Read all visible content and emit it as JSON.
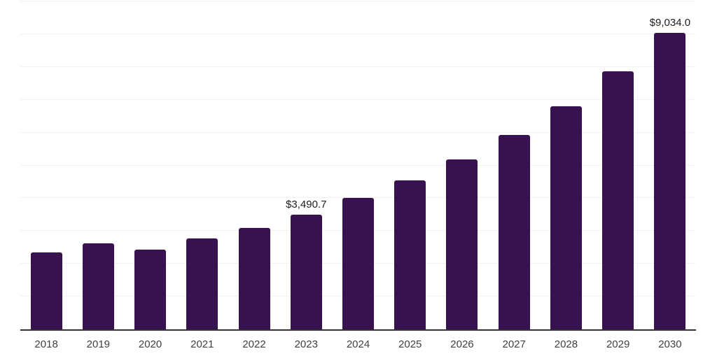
{
  "chart_data": {
    "type": "bar",
    "title": "",
    "xlabel": "",
    "ylabel": "",
    "categories": [
      "2018",
      "2019",
      "2020",
      "2021",
      "2022",
      "2023",
      "2024",
      "2025",
      "2026",
      "2027",
      "2028",
      "2029",
      "2030"
    ],
    "values": [
      2340,
      2630,
      2435,
      2770,
      3090,
      3490.7,
      4000,
      4535,
      5175,
      5935,
      6810,
      7860,
      9034
    ],
    "point_labels": [
      "",
      "",
      "",
      "",
      "",
      "$3,490.7",
      "",
      "",
      "",
      "",
      "",
      "",
      "$9,034.0"
    ],
    "ylim": [
      0,
      10000
    ],
    "gridline_step": 1000,
    "grid": "horizontal",
    "legend_position": "none",
    "bar_color": "#38124F",
    "gridline_color": "#F2F2F2",
    "axis_line_color": "#333333",
    "tick_label_color": "#3F3F3F",
    "value_label_color": "#1C1C1C",
    "background_color": "#FFFFFF"
  }
}
